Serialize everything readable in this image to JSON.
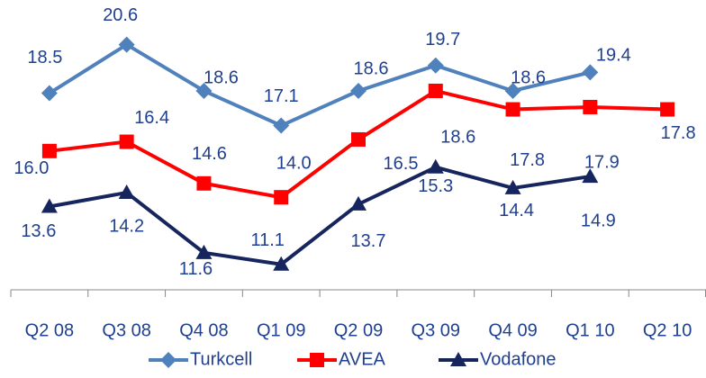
{
  "chart_data": {
    "type": "line",
    "categories": [
      "Q2 08",
      "Q3 08",
      "Q4 08",
      "Q1 09",
      "Q2 09",
      "Q3 09",
      "Q4 09",
      "Q1 10",
      "Q2 10"
    ],
    "series": [
      {
        "name": "Turkcell",
        "color": "#4f81bd",
        "marker": "diamond",
        "values": [
          18.5,
          20.6,
          18.6,
          17.1,
          18.6,
          19.7,
          18.6,
          19.4,
          null
        ],
        "value_labels": [
          "18.5",
          "20.6",
          "18.6",
          "17.1",
          "18.6",
          "19.7",
          "18.6",
          "19.4",
          null
        ]
      },
      {
        "name": "AVEA",
        "color": "#ff0000",
        "marker": "square",
        "values": [
          16.0,
          16.4,
          14.6,
          14.0,
          16.5,
          18.6,
          17.8,
          17.9,
          17.8
        ],
        "value_labels": [
          "16.0",
          "16.4",
          "14.6",
          "14.0",
          "16.5",
          "18.6",
          "17.8",
          "17.9",
          "17.8"
        ]
      },
      {
        "name": "Vodafone",
        "color": "#17255e",
        "marker": "triangle",
        "values": [
          13.6,
          14.2,
          11.6,
          11.1,
          13.7,
          15.3,
          14.4,
          14.9,
          null
        ],
        "value_labels": [
          "13.6",
          "14.2",
          "11.6",
          "11.1",
          "13.7",
          "15.3",
          "14.4",
          "14.9",
          null
        ]
      }
    ],
    "ylim": [
      10,
      22
    ],
    "legend": "bottom"
  }
}
